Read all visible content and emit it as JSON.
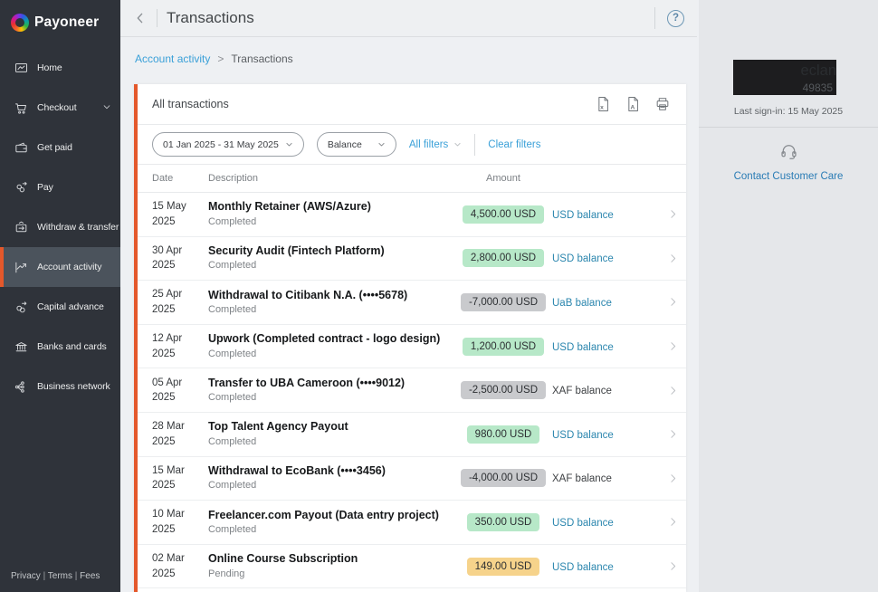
{
  "app": {
    "brand": "Payoneer"
  },
  "sidebar": {
    "items": [
      {
        "label": "Home",
        "icon": "home-icon",
        "selected": false,
        "chevron": false
      },
      {
        "label": "Checkout",
        "icon": "checkout-cart-icon",
        "selected": false,
        "chevron": true
      },
      {
        "label": "Get paid",
        "icon": "get-paid-wallet-icon",
        "selected": false,
        "chevron": false
      },
      {
        "label": "Pay",
        "icon": "pay-coins-icon",
        "selected": false,
        "chevron": false
      },
      {
        "label": "Withdraw & transfer",
        "icon": "withdraw-transfer-icon",
        "selected": false,
        "chevron": false
      },
      {
        "label": "Account activity",
        "icon": "account-activity-icon",
        "selected": true,
        "chevron": false
      },
      {
        "label": "Capital advance",
        "icon": "capital-advance-icon",
        "selected": false,
        "chevron": false
      },
      {
        "label": "Banks and cards",
        "icon": "bank-building-icon",
        "selected": false,
        "chevron": false
      },
      {
        "label": "Business network",
        "icon": "business-network-icon",
        "selected": false,
        "chevron": false
      }
    ],
    "footer_links": [
      "Privacy",
      "Terms",
      "Fees"
    ]
  },
  "header": {
    "title": "Transactions"
  },
  "breadcrumb": {
    "parent": "Account activity",
    "separator": ">",
    "current": "Transactions"
  },
  "transactions_panel": {
    "title": "All transactions",
    "export_icons": [
      "excel-export-icon",
      "pdf-export-icon",
      "print-icon"
    ],
    "filters": {
      "date_range": "01 Jan 2025 - 31 May 2025",
      "balance": "Balance",
      "all_filters": "All filters",
      "clear_filters": "Clear filters"
    },
    "table": {
      "columns": [
        "Date",
        "Description",
        "Amount"
      ],
      "rows": [
        {
          "date": "15 May",
          "year": "2025",
          "description": "Monthly Retainer (AWS/Azure)",
          "status": "Completed",
          "amount": "4,500.00 USD",
          "amount_kind": "credit",
          "balance": "USD balance",
          "balance_is_link": true
        },
        {
          "date": "30 Apr",
          "year": "2025",
          "description": "Security Audit (Fintech Platform)",
          "status": "Completed",
          "amount": "2,800.00 USD",
          "amount_kind": "credit",
          "balance": "USD balance",
          "balance_is_link": true
        },
        {
          "date": "25 Apr",
          "year": "2025",
          "description": "Withdrawal to Citibank N.A. (••••5678)",
          "status": "Completed",
          "amount": "-7,000.00 USD",
          "amount_kind": "debit",
          "balance": "UaB balance",
          "balance_is_link": true
        },
        {
          "date": "12 Apr",
          "year": "2025",
          "description": "Upwork (Completed contract - logo design)",
          "status": "Completed",
          "amount": "1,200.00 USD",
          "amount_kind": "credit",
          "balance": "USD balance",
          "balance_is_link": true
        },
        {
          "date": "05 Apr",
          "year": "2025",
          "description": "Transfer to UBA Cameroon (••••9012)",
          "status": "Completed",
          "amount": "-2,500.00 USD",
          "amount_kind": "debit",
          "balance": "XAF balance",
          "balance_is_link": false
        },
        {
          "date": "28 Mar",
          "year": "2025",
          "description": "Top Talent Agency Payout",
          "status": "Completed",
          "amount": "980.00 USD",
          "amount_kind": "credit",
          "balance": "USD balance",
          "balance_is_link": true
        },
        {
          "date": "15 Mar",
          "year": "2025",
          "description": "Withdrawal to EcoBank (••••3456)",
          "status": "Completed",
          "amount": "-4,000.00 USD",
          "amount_kind": "debit",
          "balance": "XAF balance",
          "balance_is_link": false
        },
        {
          "date": "10 Mar",
          "year": "2025",
          "description": "Freelancer.com Payout (Data entry project)",
          "status": "Completed",
          "amount": "350.00 USD",
          "amount_kind": "credit",
          "balance": "USD balance",
          "balance_is_link": true
        },
        {
          "date": "02 Mar",
          "year": "2025",
          "description": "Online Course Subscription",
          "status": "Pending",
          "amount": "149.00 USD",
          "amount_kind": "pending",
          "balance": "USD balance",
          "balance_is_link": true
        }
      ]
    }
  },
  "account_panel": {
    "name_visible": "eclan",
    "id_visible": "49835",
    "last_sign_in": "Last sign-in: 15 May 2025",
    "contact_label": "Contact Customer Care",
    "contact_icon": "headset-icon",
    "help_label": "?"
  },
  "colors": {
    "accent_orange": "#e4582b",
    "link_blue": "#3aa0d8",
    "balance_blue": "#2b86ae",
    "badge_credit_bg": "#b7e8c8",
    "badge_debit_bg": "#c9cacd",
    "badge_pending_bg": "#f6d38b",
    "sidebar_bg": "#2f333a"
  }
}
